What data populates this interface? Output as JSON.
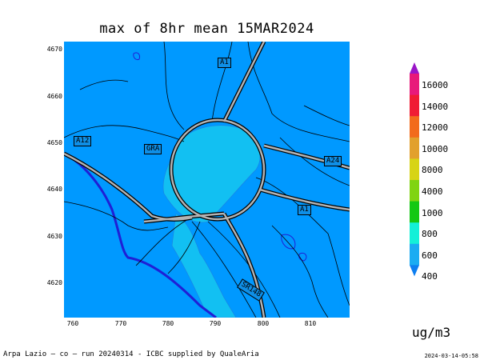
{
  "title": "max of 8hr mean 15MAR2024",
  "map": {
    "y_ticks": [
      "4670",
      "4660",
      "4650",
      "4640",
      "4630",
      "4620"
    ],
    "x_ticks": [
      "760",
      "770",
      "780",
      "790",
      "800",
      "810"
    ],
    "road_labels": [
      "A1",
      "A12",
      "GRA",
      "A24",
      "A1",
      "SR148"
    ],
    "colors": {
      "background": "#0099ff",
      "plume": "#12c0f2",
      "coast": "#1f1fd6",
      "road": "#b3b3b3"
    }
  },
  "legend": {
    "levels": [
      "16000",
      "14000",
      "12000",
      "10000",
      "8000",
      "4000",
      "1000",
      "800",
      "600",
      "400"
    ],
    "colors": [
      "#9a16c8",
      "#e81a7a",
      "#f01c34",
      "#f26b1c",
      "#e2a02c",
      "#d7d416",
      "#80d412",
      "#14c814",
      "#14f0d8",
      "#1aacf2",
      "#0d7ef0"
    ],
    "units": "ug/m3"
  },
  "footer": "Arpa Lazio — co — run 20240314 - ICBC supplied by QualeAria",
  "timestamp": "2024-03-14-05:58"
}
